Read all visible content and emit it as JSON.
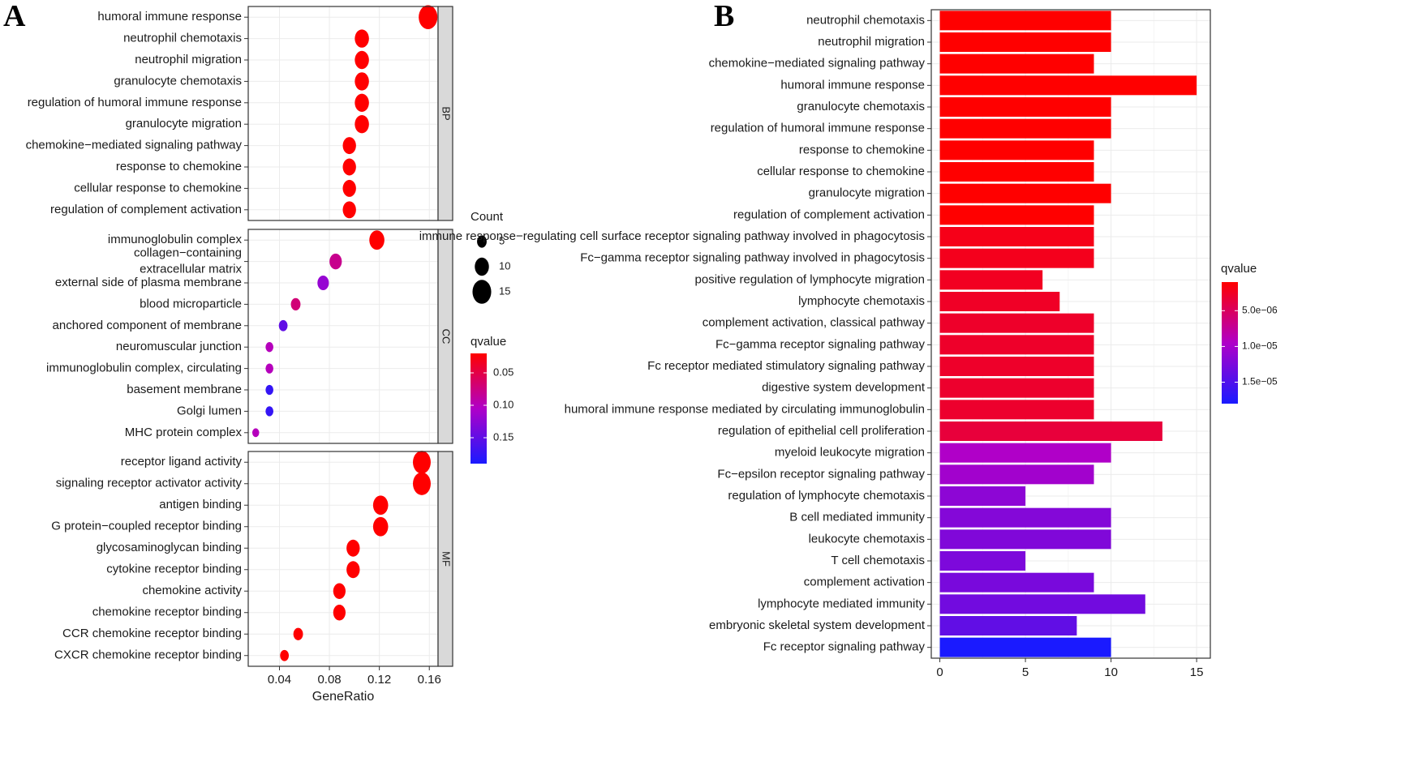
{
  "panels": {
    "a_letter": "A",
    "b_letter": "B"
  },
  "colors": {
    "qvalue_low": "#ff0000",
    "qvalue_mid": "#b000c8",
    "qvalue_high": "#1a1aff",
    "strip_fill": "#d9d9d9",
    "grid": "#ebebeb"
  },
  "chart_data": [
    {
      "type": "scatter",
      "panel": "A",
      "xlabel": "GeneRatio",
      "xlim": [
        0.015,
        0.167
      ],
      "xticks": [
        "0.04",
        "0.08",
        "0.12",
        "0.16"
      ],
      "xtick_values": [
        0.04,
        0.08,
        0.12,
        0.16
      ],
      "facets": [
        {
          "name": "BP",
          "terms": [
            {
              "term": "humoral immune response",
              "x": 0.159,
              "count": 15,
              "q": 0.02
            },
            {
              "term": "neutrophil chemotaxis",
              "x": 0.106,
              "count": 10,
              "q": 0.02
            },
            {
              "term": "neutrophil migration",
              "x": 0.106,
              "count": 10,
              "q": 0.02
            },
            {
              "term": "granulocyte chemotaxis",
              "x": 0.106,
              "count": 10,
              "q": 0.02
            },
            {
              "term": "regulation of humoral immune response",
              "x": 0.106,
              "count": 10,
              "q": 0.02
            },
            {
              "term": "granulocyte migration",
              "x": 0.106,
              "count": 10,
              "q": 0.02
            },
            {
              "term": "chemokine−mediated signaling pathway",
              "x": 0.096,
              "count": 9,
              "q": 0.02
            },
            {
              "term": "response to chemokine",
              "x": 0.096,
              "count": 9,
              "q": 0.02
            },
            {
              "term": "cellular response to chemokine",
              "x": 0.096,
              "count": 9,
              "q": 0.02
            },
            {
              "term": "regulation of complement activation",
              "x": 0.096,
              "count": 9,
              "q": 0.02
            }
          ]
        },
        {
          "name": "CC",
          "terms": [
            {
              "term": "immunoglobulin complex",
              "x": 0.118,
              "count": 11,
              "q": 0.02
            },
            {
              "term": "collagen−containing\nextracellular matrix",
              "x": 0.085,
              "count": 8,
              "q": 0.08
            },
            {
              "term": "external side of plasma membrane",
              "x": 0.075,
              "count": 7,
              "q": 0.12
            },
            {
              "term": "blood microparticle",
              "x": 0.053,
              "count": 5,
              "q": 0.07
            },
            {
              "term": "anchored component of membrane",
              "x": 0.043,
              "count": 4,
              "q": 0.15
            },
            {
              "term": "neuromuscular junction",
              "x": 0.032,
              "count": 3,
              "q": 0.1
            },
            {
              "term": "immunoglobulin complex, circulating",
              "x": 0.032,
              "count": 3,
              "q": 0.1
            },
            {
              "term": "basement membrane",
              "x": 0.032,
              "count": 3,
              "q": 0.175
            },
            {
              "term": "Golgi lumen",
              "x": 0.032,
              "count": 3,
              "q": 0.175
            },
            {
              "term": "MHC protein complex",
              "x": 0.021,
              "count": 2,
              "q": 0.1
            }
          ]
        },
        {
          "name": "MF",
          "terms": [
            {
              "term": "receptor ligand activity",
              "x": 0.154,
              "count": 14,
              "q": 0.02
            },
            {
              "term": "signaling receptor activator activity",
              "x": 0.154,
              "count": 14,
              "q": 0.02
            },
            {
              "term": "antigen binding",
              "x": 0.121,
              "count": 11,
              "q": 0.02
            },
            {
              "term": "G protein−coupled receptor binding",
              "x": 0.121,
              "count": 11,
              "q": 0.02
            },
            {
              "term": "glycosaminoglycan binding",
              "x": 0.099,
              "count": 9,
              "q": 0.02
            },
            {
              "term": "cytokine receptor binding",
              "x": 0.099,
              "count": 9,
              "q": 0.02
            },
            {
              "term": "chemokine activity",
              "x": 0.088,
              "count": 8,
              "q": 0.02
            },
            {
              "term": "chemokine receptor binding",
              "x": 0.088,
              "count": 8,
              "q": 0.02
            },
            {
              "term": "CCR chemokine receptor binding",
              "x": 0.055,
              "count": 5,
              "q": 0.02
            },
            {
              "term": "CXCR chemokine receptor binding",
              "x": 0.044,
              "count": 4,
              "q": 0.02
            }
          ]
        }
      ],
      "size_legend": {
        "title": "Count",
        "values": [
          5,
          10,
          15
        ]
      },
      "color_legend": {
        "title": "qvalue",
        "range": [
          0.02,
          0.19
        ],
        "ticks": [
          "0.05",
          "0.10",
          "0.15"
        ],
        "tick_values": [
          0.05,
          0.1,
          0.15
        ]
      }
    },
    {
      "type": "bar",
      "panel": "B",
      "orientation": "horizontal",
      "xlim": [
        -0.5,
        15.8
      ],
      "xticks": [
        "0",
        "5",
        "10",
        "15"
      ],
      "xtick_values": [
        0,
        5,
        10,
        15
      ],
      "categories": [
        "neutrophil chemotaxis",
        "neutrophil migration",
        "chemokine−mediated signaling pathway",
        "humoral immune response",
        "granulocyte chemotaxis",
        "regulation of humoral immune response",
        "response to chemokine",
        "cellular response to chemokine",
        "granulocyte migration",
        "regulation of complement activation",
        "immune response−regulating cell surface receptor signaling pathway involved in phagocytosis",
        "Fc−gamma receptor signaling pathway involved in phagocytosis",
        "positive regulation of lymphocyte migration",
        "lymphocyte chemotaxis",
        "complement activation, classical pathway",
        "Fc−gamma receptor signaling pathway",
        "Fc receptor mediated stimulatory signaling pathway",
        "digestive system development",
        "humoral immune response mediated by circulating immunoglobulin",
        "regulation of epithelial cell proliferation",
        "myeloid leukocyte migration",
        "Fc−epsilon receptor signaling pathway",
        "regulation of lymphocyte chemotaxis",
        "B cell mediated immunity",
        "leukocyte chemotaxis",
        "T cell chemotaxis",
        "complement activation",
        "lymphocyte mediated immunity",
        "embryonic skeletal system development",
        "Fc receptor signaling pathway"
      ],
      "values": [
        10,
        10,
        9,
        15,
        10,
        10,
        9,
        9,
        10,
        9,
        9,
        9,
        6,
        7,
        9,
        9,
        9,
        9,
        9,
        13,
        10,
        9,
        5,
        10,
        10,
        5,
        9,
        12,
        8,
        10
      ],
      "qvalues": [
        1e-06,
        1e-06,
        1e-06,
        1e-06,
        1e-06,
        1e-06,
        1e-06,
        1e-06,
        1e-06,
        1e-06,
        2e-06,
        2.2e-06,
        2.4e-06,
        2.6e-06,
        2.8e-06,
        2.8e-06,
        2.8e-06,
        2.9e-06,
        2.9e-06,
        3.5e-06,
        9.5e-06,
        1.03e-05,
        1.15e-05,
        1.2e-05,
        1.22e-05,
        1.24e-05,
        1.26e-05,
        1.3e-05,
        1.4e-05,
        1.8e-05
      ],
      "color_legend": {
        "title": "qvalue",
        "range": [
          1e-06,
          1.8e-05
        ],
        "ticks": [
          "5.0e−06",
          "1.0e−05",
          "1.5e−05"
        ],
        "tick_values": [
          5e-06,
          1e-05,
          1.5e-05
        ]
      }
    }
  ]
}
